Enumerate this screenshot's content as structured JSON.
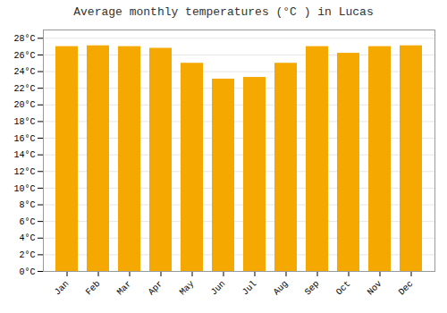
{
  "chart_data": {
    "type": "bar",
    "title": "Average monthly temperatures (°C ) in Lucas",
    "categories": [
      "Jan",
      "Feb",
      "Mar",
      "Apr",
      "May",
      "Jun",
      "Jul",
      "Aug",
      "Sep",
      "Oct",
      "Nov",
      "Dec"
    ],
    "values": [
      27.0,
      27.1,
      27.0,
      26.8,
      25.0,
      23.1,
      23.3,
      25.0,
      27.0,
      26.2,
      27.0,
      27.1
    ],
    "color": "#F5A800",
    "ylim": [
      0,
      29
    ],
    "yticks": [
      {
        "value": 0,
        "label": "0°C"
      },
      {
        "value": 2,
        "label": "2°C"
      },
      {
        "value": 4,
        "label": "4°C"
      },
      {
        "value": 6,
        "label": "6°C"
      },
      {
        "value": 8,
        "label": "8°C"
      },
      {
        "value": 10,
        "label": "10°C"
      },
      {
        "value": 12,
        "label": "12°C"
      },
      {
        "value": 14,
        "label": "14°C"
      },
      {
        "value": 16,
        "label": "16°C"
      },
      {
        "value": 18,
        "label": "18°C"
      },
      {
        "value": 20,
        "label": "20°C"
      },
      {
        "value": 22,
        "label": "22°C"
      },
      {
        "value": 24,
        "label": "24°C"
      },
      {
        "value": 26,
        "label": "26°C"
      },
      {
        "value": 28,
        "label": "28°C"
      }
    ],
    "grid": true
  }
}
